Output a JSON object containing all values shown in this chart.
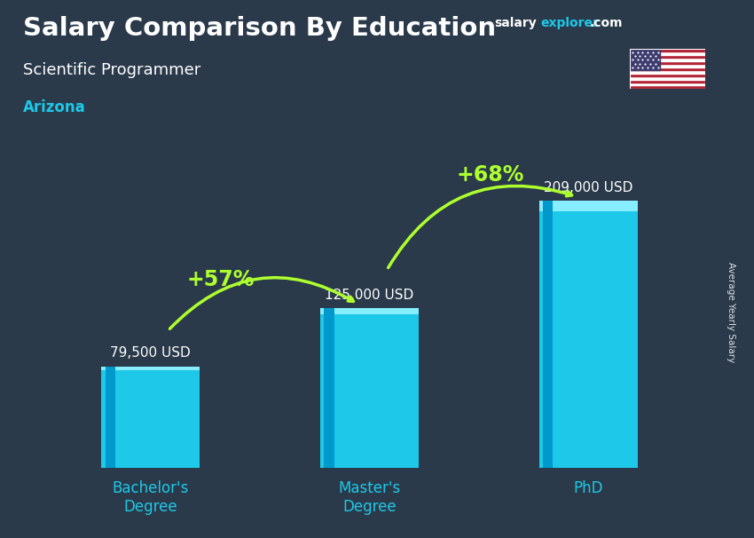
{
  "title": "Salary Comparison By Education",
  "subtitle": "Scientific Programmer",
  "location": "Arizona",
  "categories": [
    "Bachelor's\nDegree",
    "Master's\nDegree",
    "PhD"
  ],
  "values": [
    79500,
    125000,
    209000
  ],
  "value_labels": [
    "79,500 USD",
    "125,000 USD",
    "209,000 USD"
  ],
  "pct_labels": [
    "+57%",
    "+68%"
  ],
  "bar_color": "#1EC8E8",
  "bar_highlight": "#87EEFF",
  "bar_shadow": "#0099CC",
  "bg_color": "#2a3a4a",
  "title_color": "#FFFFFF",
  "subtitle_color": "#FFFFFF",
  "location_color": "#1EC8E8",
  "value_color": "#FFFFFF",
  "pct_color": "#ADFF2F",
  "arrow_color": "#ADFF2F",
  "ylabel": "Average Yearly Salary",
  "figsize": [
    8.5,
    6.06
  ],
  "dpi": 100,
  "bar_width": 0.45,
  "ylim": [
    0,
    265000
  ]
}
